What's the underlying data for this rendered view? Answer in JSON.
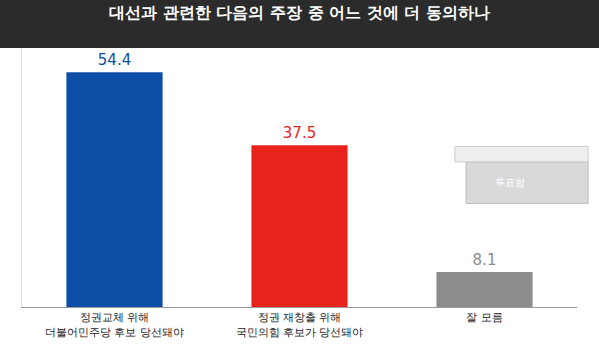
{
  "chart_data": {
    "type": "bar",
    "title": "대선과 관련한 다음의 주장 중 어느 것에 더 동의하나",
    "categories": [
      "정권교체 위해\n더불어민주당 후보 당선돼야",
      "정권 재창출 위해\n국민의힘 후보가 당선돼야",
      "잘 모름"
    ],
    "values": [
      54.4,
      37.5,
      8.1
    ],
    "colors": [
      "#0d4ea6",
      "#e8231c",
      "#8c8c8c"
    ],
    "ylim": [
      0,
      60
    ],
    "yticks": [],
    "grid": false,
    "data_labels": true,
    "tick_labels": "x",
    "annotations": [
      "투표함"
    ]
  }
}
